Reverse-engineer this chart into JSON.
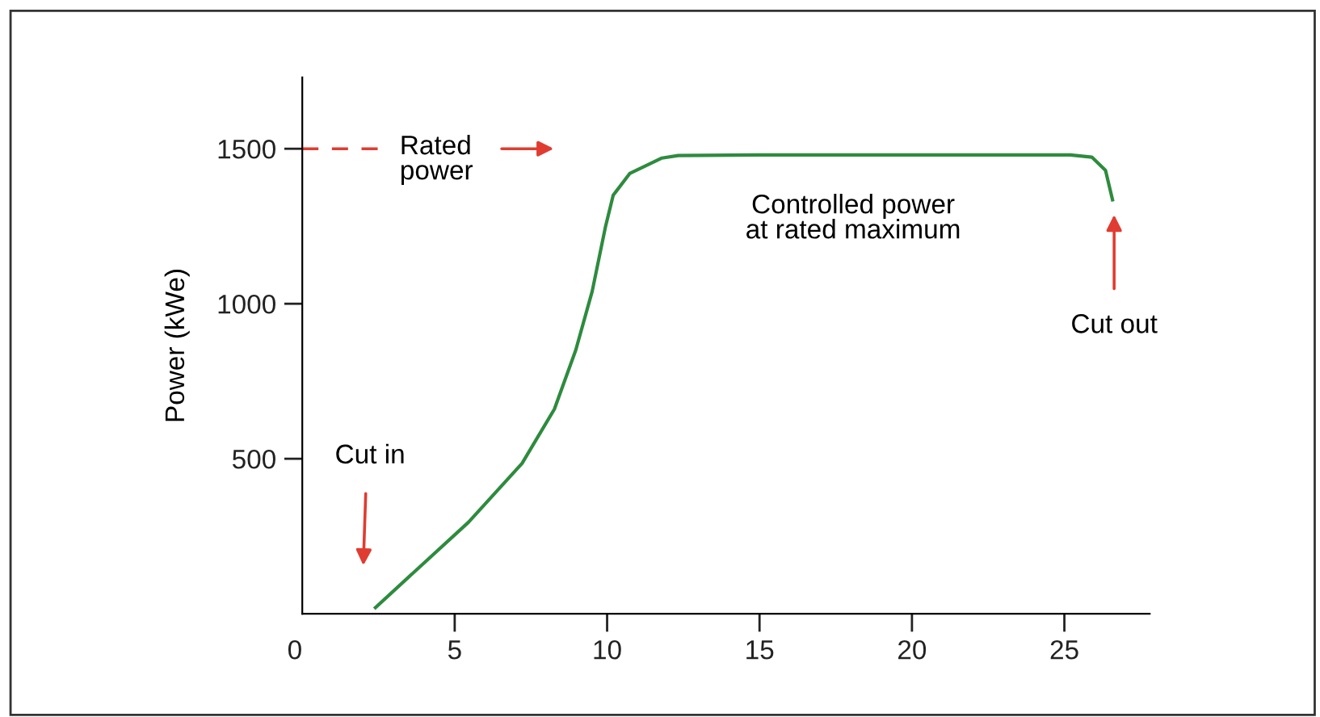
{
  "chart_data": {
    "type": "line",
    "ylabel": "Power (kWe)",
    "x": [
      2.4,
      5.45,
      7.21,
      8.27,
      8.97,
      9.51,
      9.95,
      10.2,
      10.74,
      11.8,
      12.33,
      15,
      20,
      25.19,
      25.9,
      26.35,
      26.58
    ],
    "series": [
      {
        "color": "#2e8b3e",
        "values": [
          20,
          295,
          485,
          660,
          850,
          1040,
          1250,
          1350,
          1420,
          1470,
          1478,
          1480,
          1480,
          1480,
          1473,
          1430,
          1335
        ]
      }
    ],
    "xlim": [
      0,
      27.8
    ],
    "ylim": [
      0,
      1730
    ],
    "xticks": [
      {
        "value": 0,
        "label": "0"
      },
      5,
      10,
      15,
      20,
      25
    ],
    "yticks": [
      500,
      1000,
      1500
    ],
    "grid": false,
    "legend": false,
    "marker": "none",
    "line_style": "solid",
    "ref_lines": [
      {
        "axis": "y",
        "value": 1500,
        "label": "Rated\npower",
        "color": "#e03c31",
        "line_style": "dashed"
      }
    ],
    "annotations": [
      "Cut in",
      "Controlled power\nat rated maximum",
      "Cut out"
    ]
  }
}
